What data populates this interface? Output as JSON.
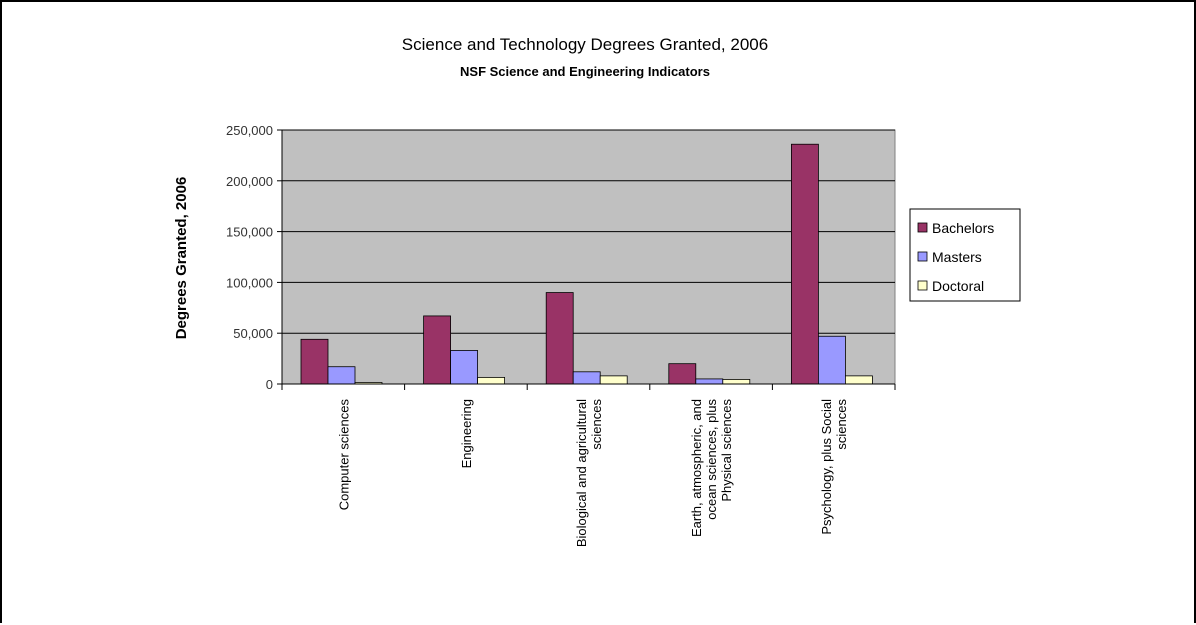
{
  "chart_data": {
    "type": "bar",
    "title": "Science and Technology Degrees Granted, 2006",
    "subtitle": "NSF Science and Engineering Indicators",
    "xlabel": "",
    "ylabel": "Degrees Granted, 2006",
    "ylim": [
      0,
      250000
    ],
    "yticks": [
      "0",
      "50,000",
      "100,000",
      "150,000",
      "200,000",
      "250,000"
    ],
    "grid": true,
    "legend_position": "right",
    "plot_background": "#c0c0c0",
    "categories": [
      [
        "Computer sciences"
      ],
      [
        "Engineering"
      ],
      [
        "Biological and agricultural",
        "sciences"
      ],
      [
        "Earth, atmospheric, and",
        "ocean sciences, plus",
        "Physical sciences"
      ],
      [
        "Psychology, plus Social",
        "sciences"
      ]
    ],
    "series": [
      {
        "name": "Bachelors",
        "color": "#993366",
        "values": [
          44000,
          67000,
          90000,
          20000,
          236000
        ]
      },
      {
        "name": "Masters",
        "color": "#9999ff",
        "values": [
          17000,
          33000,
          12000,
          5000,
          47000
        ]
      },
      {
        "name": "Doctoral",
        "color": "#ffffcc",
        "values": [
          1500,
          6500,
          8000,
          4500,
          8000
        ]
      }
    ]
  }
}
